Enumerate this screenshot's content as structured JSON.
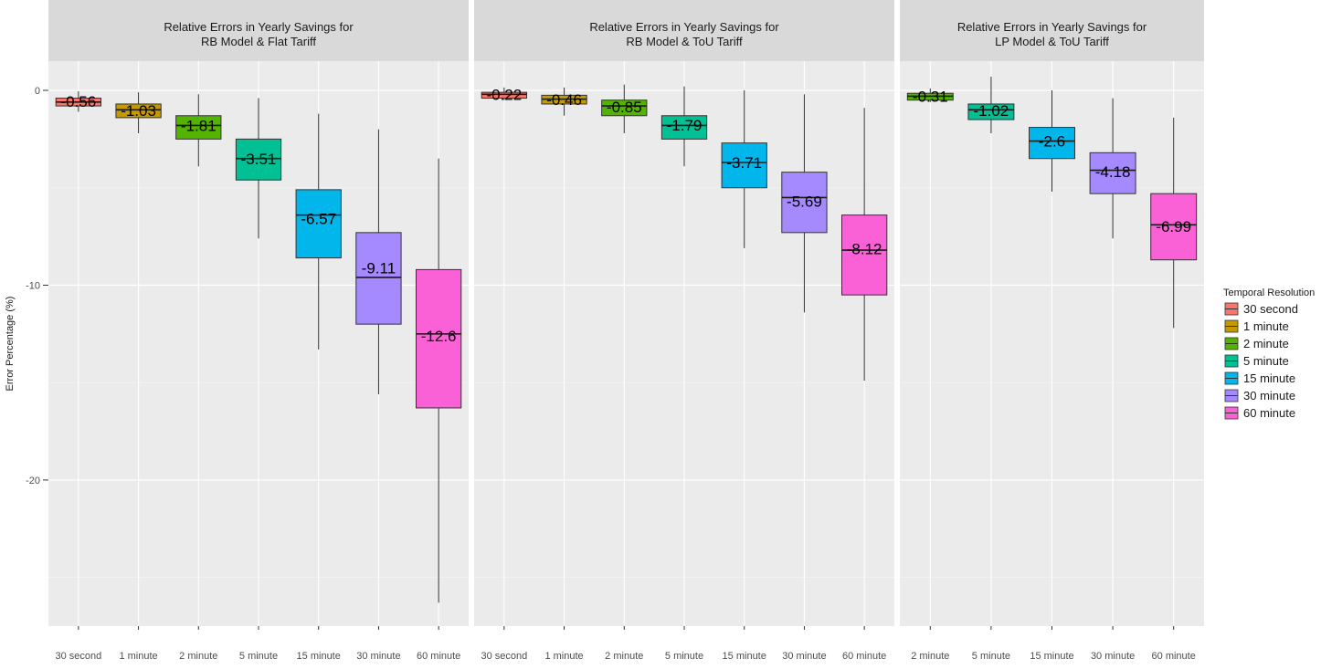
{
  "chart_data": {
    "type": "box",
    "y_axis": {
      "label": "Error Percentage (%)",
      "ticks": [
        0,
        -10,
        -20
      ],
      "range": [
        -27.5,
        1.5
      ]
    },
    "legend": {
      "title": "Temporal Resolution",
      "placement": "right",
      "items": [
        {
          "label": "30 second",
          "color": "#F8766D"
        },
        {
          "label": "1 minute",
          "color": "#C49A00"
        },
        {
          "label": "2 minute",
          "color": "#53B400"
        },
        {
          "label": "5 minute",
          "color": "#00C094"
        },
        {
          "label": "15 minute",
          "color": "#00B6EB"
        },
        {
          "label": "30 minute",
          "color": "#A58AFF"
        },
        {
          "label": "60 minute",
          "color": "#FB61D7"
        }
      ]
    },
    "panels": [
      {
        "title_line1": "Relative Errors in Yearly Savings for",
        "title_line2": "RB Model & Flat Tariff",
        "categories": [
          "30 second",
          "1 minute",
          "2 minute",
          "5 minute",
          "15 minute",
          "30 minute",
          "60 minute"
        ],
        "boxes": [
          {
            "min": -1.1,
            "q1": -0.8,
            "median": -0.6,
            "q3": -0.4,
            "max": -0.05,
            "label": "-0.56"
          },
          {
            "min": -2.2,
            "q1": -1.4,
            "median": -1.0,
            "q3": -0.7,
            "max": -0.1,
            "label": "-1.03"
          },
          {
            "min": -3.9,
            "q1": -2.5,
            "median": -1.8,
            "q3": -1.3,
            "max": -0.2,
            "label": "-1.81"
          },
          {
            "min": -7.6,
            "q1": -4.6,
            "median": -3.5,
            "q3": -2.5,
            "max": -0.4,
            "label": "-3.51"
          },
          {
            "min": -13.3,
            "q1": -8.6,
            "median": -6.4,
            "q3": -5.1,
            "max": -1.2,
            "label": "-6.57"
          },
          {
            "min": -15.6,
            "q1": -12.0,
            "median": -9.6,
            "q3": -7.3,
            "max": -2.0,
            "label": "-9.11"
          },
          {
            "min": -26.3,
            "q1": -16.3,
            "median": -12.5,
            "q3": -9.2,
            "max": -3.5,
            "label": "-12.6"
          }
        ]
      },
      {
        "title_line1": "Relative Errors in Yearly Savings for",
        "title_line2": "RB Model & ToU Tariff",
        "categories": [
          "30 second",
          "1 minute",
          "2 minute",
          "5 minute",
          "15 minute",
          "30 minute",
          "60 minute"
        ],
        "boxes": [
          {
            "min": -0.5,
            "q1": -0.4,
            "median": -0.2,
            "q3": -0.1,
            "max": 0.15,
            "label": "-0.22"
          },
          {
            "min": -1.3,
            "q1": -0.7,
            "median": -0.45,
            "q3": -0.25,
            "max": 0.15,
            "label": "-0.46"
          },
          {
            "min": -2.2,
            "q1": -1.3,
            "median": -0.8,
            "q3": -0.5,
            "max": 0.3,
            "label": "-0.85"
          },
          {
            "min": -3.9,
            "q1": -2.5,
            "median": -1.8,
            "q3": -1.3,
            "max": 0.2,
            "label": "-1.79"
          },
          {
            "min": -8.1,
            "q1": -5.0,
            "median": -3.7,
            "q3": -2.7,
            "max": 0.0,
            "label": "-3.71"
          },
          {
            "min": -11.4,
            "q1": -7.3,
            "median": -5.5,
            "q3": -4.2,
            "max": -0.2,
            "label": "-5.69"
          },
          {
            "min": -14.9,
            "q1": -10.5,
            "median": -8.2,
            "q3": -6.4,
            "max": -0.9,
            "label": "-8.12"
          }
        ]
      },
      {
        "title_line1": "Relative Errors in Yearly Savings for",
        "title_line2": "LP Model & ToU Tariff",
        "categories": [
          "2 minute",
          "5 minute",
          "15 minute",
          "30 minute",
          "60 minute"
        ],
        "color_offset": 2,
        "boxes": [
          {
            "min": -0.6,
            "q1": -0.5,
            "median": -0.3,
            "q3": -0.15,
            "max": 0.1,
            "label": "-0.31"
          },
          {
            "min": -2.2,
            "q1": -1.5,
            "median": -1.0,
            "q3": -0.7,
            "max": 0.7,
            "label": "-1.02"
          },
          {
            "min": -5.2,
            "q1": -3.5,
            "median": -2.6,
            "q3": -1.9,
            "max": 0.0,
            "label": "-2.6"
          },
          {
            "min": -7.6,
            "q1": -5.3,
            "median": -4.1,
            "q3": -3.2,
            "max": -0.4,
            "label": "-4.18"
          },
          {
            "min": -12.2,
            "q1": -8.7,
            "median": -6.9,
            "q3": -5.3,
            "max": -1.4,
            "label": "-6.99"
          }
        ]
      }
    ]
  }
}
